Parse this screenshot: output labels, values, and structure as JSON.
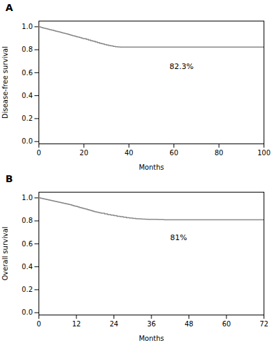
{
  "chart_data": [
    {
      "type": "step",
      "title": "A",
      "xlabel": "Months",
      "ylabel": "Disease-free survival",
      "color": "#888888",
      "xlim": [
        0,
        100
      ],
      "ylim": [
        -0.02,
        1.05
      ],
      "xticks": [
        0,
        20,
        40,
        60,
        80,
        100
      ],
      "yticks": [
        {
          "value": 0.0,
          "label": "0.0"
        },
        0.2,
        0.4,
        0.6,
        0.8,
        {
          "value": 1.0,
          "label": "1.0"
        }
      ],
      "annotations": [
        {
          "x": 58,
          "y": 0.635,
          "text": "82.3%"
        }
      ],
      "x": [
        0,
        0.5,
        1.0,
        1.5,
        2.0,
        2.5,
        3.0,
        3.5,
        4.0,
        4.5,
        5.0,
        5.5,
        6.0,
        6.5,
        7.0,
        7.5,
        8.0,
        8.5,
        9.0,
        9.5,
        10.0,
        10.5,
        11.0,
        11.5,
        12.0,
        12.5,
        13.0,
        13.5,
        14.0,
        14.5,
        15.0,
        15.5,
        16.0,
        16.5,
        17.0,
        17.5,
        18.0,
        18.5,
        19.0,
        19.5,
        20.0,
        21.0,
        22.0,
        23.0,
        24.0,
        25.0,
        26.0,
        27.0,
        28.0,
        29.0,
        30.0,
        31.0,
        32.0,
        33.0,
        34.0,
        35.0,
        36.0,
        37.0,
        38.0,
        39.0,
        40.0,
        41.0,
        42.0,
        43.0,
        44.0,
        46.0,
        48.0,
        50.0,
        52.0,
        54.0,
        56.0,
        100.0
      ],
      "values": [
        1.0,
        0.997,
        0.994,
        0.992,
        0.989,
        0.987,
        0.984,
        0.982,
        0.98,
        0.977,
        0.975,
        0.972,
        0.97,
        0.967,
        0.965,
        0.962,
        0.96,
        0.957,
        0.955,
        0.952,
        0.95,
        0.947,
        0.945,
        0.942,
        0.94,
        0.937,
        0.934,
        0.931,
        0.929,
        0.926,
        0.923,
        0.921,
        0.918,
        0.915,
        0.912,
        0.91,
        0.907,
        0.904,
        0.901,
        0.898,
        0.896,
        0.89,
        0.885,
        0.879,
        0.874,
        0.868,
        0.862,
        0.856,
        0.851,
        0.846,
        0.841,
        0.837,
        0.833,
        0.829,
        0.826,
        0.824,
        0.823,
        0.823,
        0.823,
        0.823,
        0.823,
        0.823,
        0.823,
        0.823,
        0.823,
        0.823,
        0.823,
        0.823,
        0.823,
        0.823,
        0.823,
        0.823
      ]
    },
    {
      "type": "step",
      "title": "B",
      "xlabel": "Months",
      "ylabel": "Overall survival",
      "color": "#888888",
      "xlim": [
        0,
        72
      ],
      "ylim": [
        -0.02,
        1.05
      ],
      "xticks": [
        0,
        12,
        24,
        36,
        48,
        60,
        72
      ],
      "yticks": [
        {
          "value": 0.0,
          "label": "0.0"
        },
        0.2,
        0.4,
        0.6,
        0.8,
        {
          "value": 1.0,
          "label": "1.0"
        }
      ],
      "annotations": [
        {
          "x": 42,
          "y": 0.635,
          "text": "81%"
        }
      ],
      "x": [
        0,
        0.5,
        1.0,
        1.5,
        2.0,
        2.5,
        3.0,
        3.5,
        4.0,
        4.5,
        5.0,
        5.5,
        6.0,
        6.5,
        7.0,
        7.5,
        8.0,
        8.5,
        9.0,
        9.5,
        10.0,
        10.5,
        11.0,
        11.5,
        12.0,
        12.5,
        13.0,
        13.5,
        14.0,
        14.5,
        15.0,
        15.5,
        16.0,
        16.5,
        17.0,
        17.5,
        18.0,
        18.5,
        19.0,
        19.5,
        20.0,
        21.0,
        22.0,
        23.0,
        24.0,
        25.0,
        26.0,
        27.0,
        28.0,
        29.0,
        30.0,
        31.0,
        32.0,
        33.0,
        34.0,
        35.0,
        36.0,
        37.0,
        38.0,
        39.0,
        40.0,
        42.0,
        44.0,
        46.0,
        48.0,
        50.0,
        52.0,
        54.0,
        72.0
      ],
      "values": [
        1.0,
        0.997,
        0.994,
        0.991,
        0.988,
        0.985,
        0.982,
        0.979,
        0.976,
        0.973,
        0.97,
        0.967,
        0.964,
        0.961,
        0.958,
        0.955,
        0.952,
        0.949,
        0.946,
        0.943,
        0.94,
        0.936,
        0.932,
        0.929,
        0.925,
        0.921,
        0.917,
        0.913,
        0.909,
        0.905,
        0.902,
        0.898,
        0.894,
        0.89,
        0.886,
        0.882,
        0.879,
        0.876,
        0.873,
        0.87,
        0.867,
        0.86,
        0.855,
        0.85,
        0.845,
        0.84,
        0.836,
        0.832,
        0.828,
        0.824,
        0.821,
        0.819,
        0.817,
        0.815,
        0.814,
        0.813,
        0.812,
        0.812,
        0.811,
        0.811,
        0.81,
        0.81,
        0.81,
        0.81,
        0.81,
        0.81,
        0.81,
        0.81,
        0.81
      ]
    }
  ]
}
